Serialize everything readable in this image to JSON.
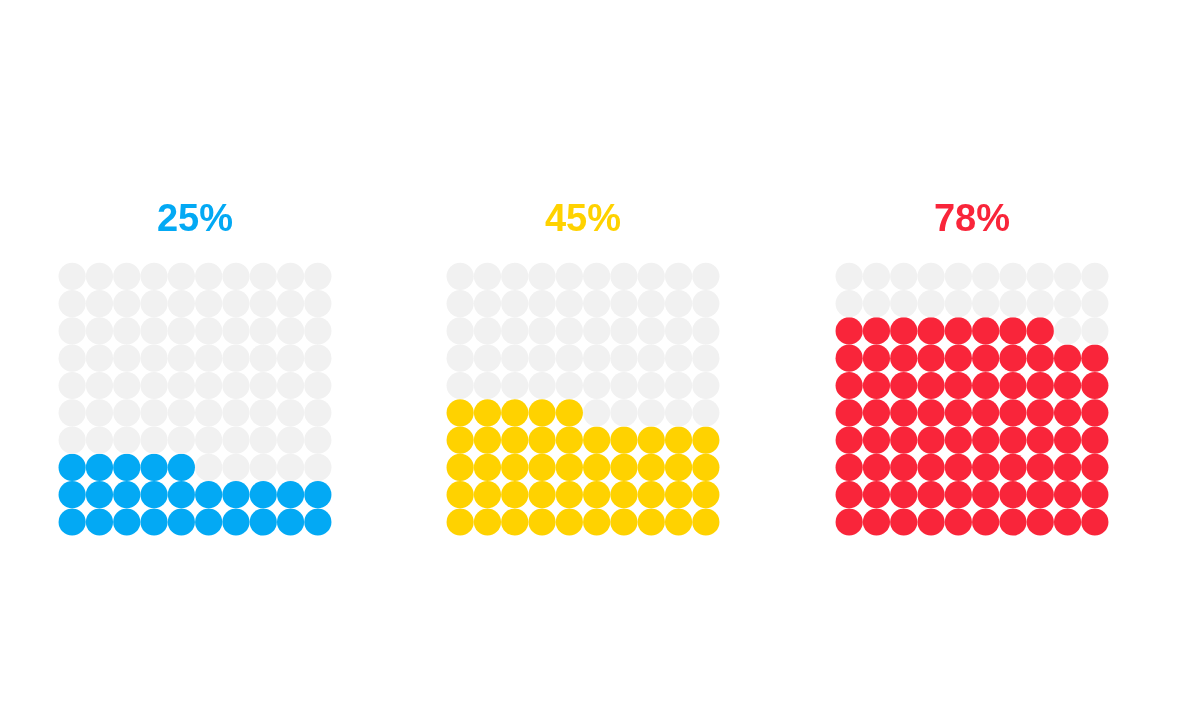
{
  "chart_data": [
    {
      "type": "other",
      "values": [
        25
      ],
      "value_labels": [
        "25%"
      ],
      "color": "#03a9f4"
    },
    {
      "type": "other",
      "values": [
        45
      ],
      "value_labels": [
        "45%"
      ],
      "color": "#ffd200"
    },
    {
      "type": "other",
      "values": [
        78
      ],
      "value_labels": [
        "78%"
      ],
      "color": "#f9253a"
    }
  ]
}
